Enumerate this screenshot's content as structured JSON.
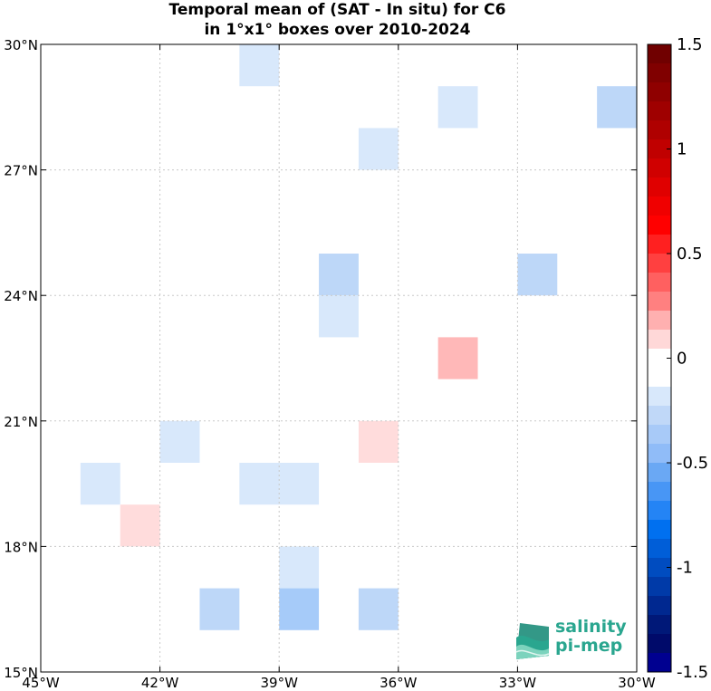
{
  "chart_data": {
    "type": "heatmap",
    "title_lines": [
      "Temporal mean of (SAT - In situ) for C6",
      "in 1°x1° boxes over 2010-2024"
    ],
    "x_range": [
      -45,
      -30
    ],
    "y_range": [
      15,
      30
    ],
    "x_ticks": [
      -45,
      -42,
      -39,
      -36,
      -33,
      -30
    ],
    "x_tick_labels": [
      "45°W",
      "42°W",
      "39°W",
      "36°W",
      "33°W",
      "30°W"
    ],
    "y_ticks": [
      15,
      18,
      21,
      24,
      27,
      30
    ],
    "y_tick_labels": [
      "15°N",
      "18°N",
      "21°N",
      "24°N",
      "27°N",
      "30°N"
    ],
    "grid": true,
    "cell_size_deg": 1,
    "cells": [
      {
        "lon": -40,
        "lat": 29,
        "value": -0.15
      },
      {
        "lon": -35,
        "lat": 28,
        "value": -0.15
      },
      {
        "lon": -31,
        "lat": 28,
        "value": -0.3
      },
      {
        "lon": -37,
        "lat": 27,
        "value": -0.15
      },
      {
        "lon": -38,
        "lat": 24,
        "value": -0.3
      },
      {
        "lon": -33,
        "lat": 24,
        "value": -0.3
      },
      {
        "lon": -38,
        "lat": 23,
        "value": -0.15
      },
      {
        "lon": -35,
        "lat": 22,
        "value": 0.35
      },
      {
        "lon": -42,
        "lat": 20,
        "value": -0.15
      },
      {
        "lon": -37,
        "lat": 20,
        "value": 0.2
      },
      {
        "lon": -44,
        "lat": 19,
        "value": -0.15
      },
      {
        "lon": -40,
        "lat": 19,
        "value": -0.15
      },
      {
        "lon": -39,
        "lat": 19,
        "value": -0.15
      },
      {
        "lon": -43,
        "lat": 18,
        "value": 0.2
      },
      {
        "lon": -39,
        "lat": 17,
        "value": -0.15
      },
      {
        "lon": -41,
        "lat": 16,
        "value": -0.3
      },
      {
        "lon": -39,
        "lat": 16,
        "value": -0.4
      },
      {
        "lon": -37,
        "lat": 16,
        "value": -0.3
      }
    ],
    "colorbar": {
      "range": [
        -1.5,
        1.5
      ],
      "levels": 30,
      "ticks": [
        1.5,
        1,
        0.5,
        0,
        -0.5,
        -1,
        -1.5
      ],
      "tick_labels": [
        "1.5",
        "1",
        "0.5",
        "0",
        "-0.5",
        "-1",
        "-1.5"
      ],
      "colors_top_to_bottom": [
        "#700000",
        "#800000",
        "#8f0000",
        "#9f0000",
        "#af0000",
        "#c00000",
        "#d00000",
        "#e00000",
        "#f00000",
        "#ff0000",
        "#ff2020",
        "#ff4040",
        "#ff6060",
        "#ff8080",
        "#ffb0b0",
        "#ffd8d8",
        "#ffffff",
        "#ffffff",
        "#d8e8fb",
        "#c0d8f8",
        "#a8caf8",
        "#90bcf8",
        "#6aa8f4",
        "#4896f5",
        "#2484f5",
        "#0070f0",
        "#005ed8",
        "#004cc0",
        "#003aa8",
        "#002890",
        "#001878",
        "#000a6a",
        "#000090"
      ]
    },
    "cell_colors": {
      "-0.15": "#d8e8fb",
      "-0.3": "#bdd7f8",
      "-0.4": "#a6cbf9",
      "0.2": "#ffdcdc",
      "0.35": "#ffb8b8"
    }
  },
  "logo": {
    "line1": "salinity",
    "line2": "pi-mep",
    "colors": [
      "#1d8d7a",
      "#2aa68f",
      "#7cd3bd"
    ]
  }
}
